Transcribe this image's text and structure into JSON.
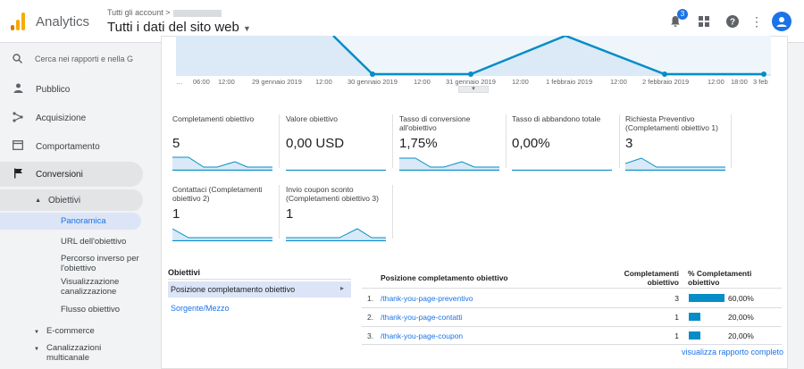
{
  "header": {
    "app_title": "Analytics",
    "account_crumb": "Tutti gli account",
    "property_title": "Tutti i dati del sito web",
    "notification_count": "3"
  },
  "sidebar": {
    "search_placeholder": "Cerca nei rapporti e nella G",
    "items": [
      {
        "label": "Pubblico",
        "icon": "person-icon"
      },
      {
        "label": "Acquisizione",
        "icon": "acquisition-icon"
      },
      {
        "label": "Comportamento",
        "icon": "behavior-icon"
      },
      {
        "label": "Conversioni",
        "icon": "flag-icon"
      }
    ],
    "obiettivi": "Obiettivi",
    "sub_items": [
      "Panoramica",
      "URL dell'obiettivo",
      "Percorso inverso per l'obiettivo",
      "Visualizzazione canalizzazione",
      "Flusso obiettivo"
    ],
    "ecommerce": "E-commerce",
    "multichannel": "Canalizzazioni multicanale"
  },
  "chart": {
    "ticks": [
      "…",
      "06:00",
      "12:00",
      "29 gennaio 2019",
      "12:00",
      "30 gennaio 2019",
      "12:00",
      "31 gennaio 2019",
      "12:00",
      "1 febbraio 2019",
      "12:00",
      "2 febbraio 2019",
      "12:00",
      "18:00",
      "3 feb"
    ],
    "line_color": "#058dc7",
    "visible_points": [
      {
        "x": "30 gennaio 2019",
        "y_rel": 0
      },
      {
        "x": "31 gennaio 2019",
        "y_rel": 0
      },
      {
        "x": "2 febbraio 2019",
        "y_rel": 0
      },
      {
        "x": "3 feb",
        "y_rel": 0
      }
    ]
  },
  "metrics": [
    {
      "label": "Completamenti obiettivo",
      "value": "5"
    },
    {
      "label": "Valore obiettivo",
      "value": "0,00 USD"
    },
    {
      "label": "Tasso di conversione all'obiettivo",
      "value": "1,75%"
    },
    {
      "label": "Tasso di abbandono totale",
      "value": "0,00%"
    },
    {
      "label": "Richiesta Preventivo (Completamenti obiettivo 1)",
      "value": "3"
    },
    {
      "label": "Contattaci (Completamenti obiettivo 2)",
      "value": "1"
    },
    {
      "label": "Invio coupon sconto (Completamenti obiettivo 3)",
      "value": "1"
    }
  ],
  "goals_panel": {
    "header": "Obiettivi",
    "selected": "Posizione completamento obiettivo",
    "link": "Sorgente/Mezzo"
  },
  "table": {
    "col_position": "Posizione completamento obiettivo",
    "col_completions": "Completamenti obiettivo",
    "col_percent": "% Completamenti obiettivo",
    "rows": [
      {
        "idx": "1.",
        "path": "/thank-you-page-preventivo",
        "completions": "3",
        "percent": "60,00%",
        "share": 0.6
      },
      {
        "idx": "2.",
        "path": "/thank-you-page-contatti",
        "completions": "1",
        "percent": "20,00%",
        "share": 0.2
      },
      {
        "idx": "3.",
        "path": "/thank-you-page-coupon",
        "completions": "1",
        "percent": "20,00%",
        "share": 0.2
      }
    ],
    "full_report": "visualizza rapporto completo"
  }
}
